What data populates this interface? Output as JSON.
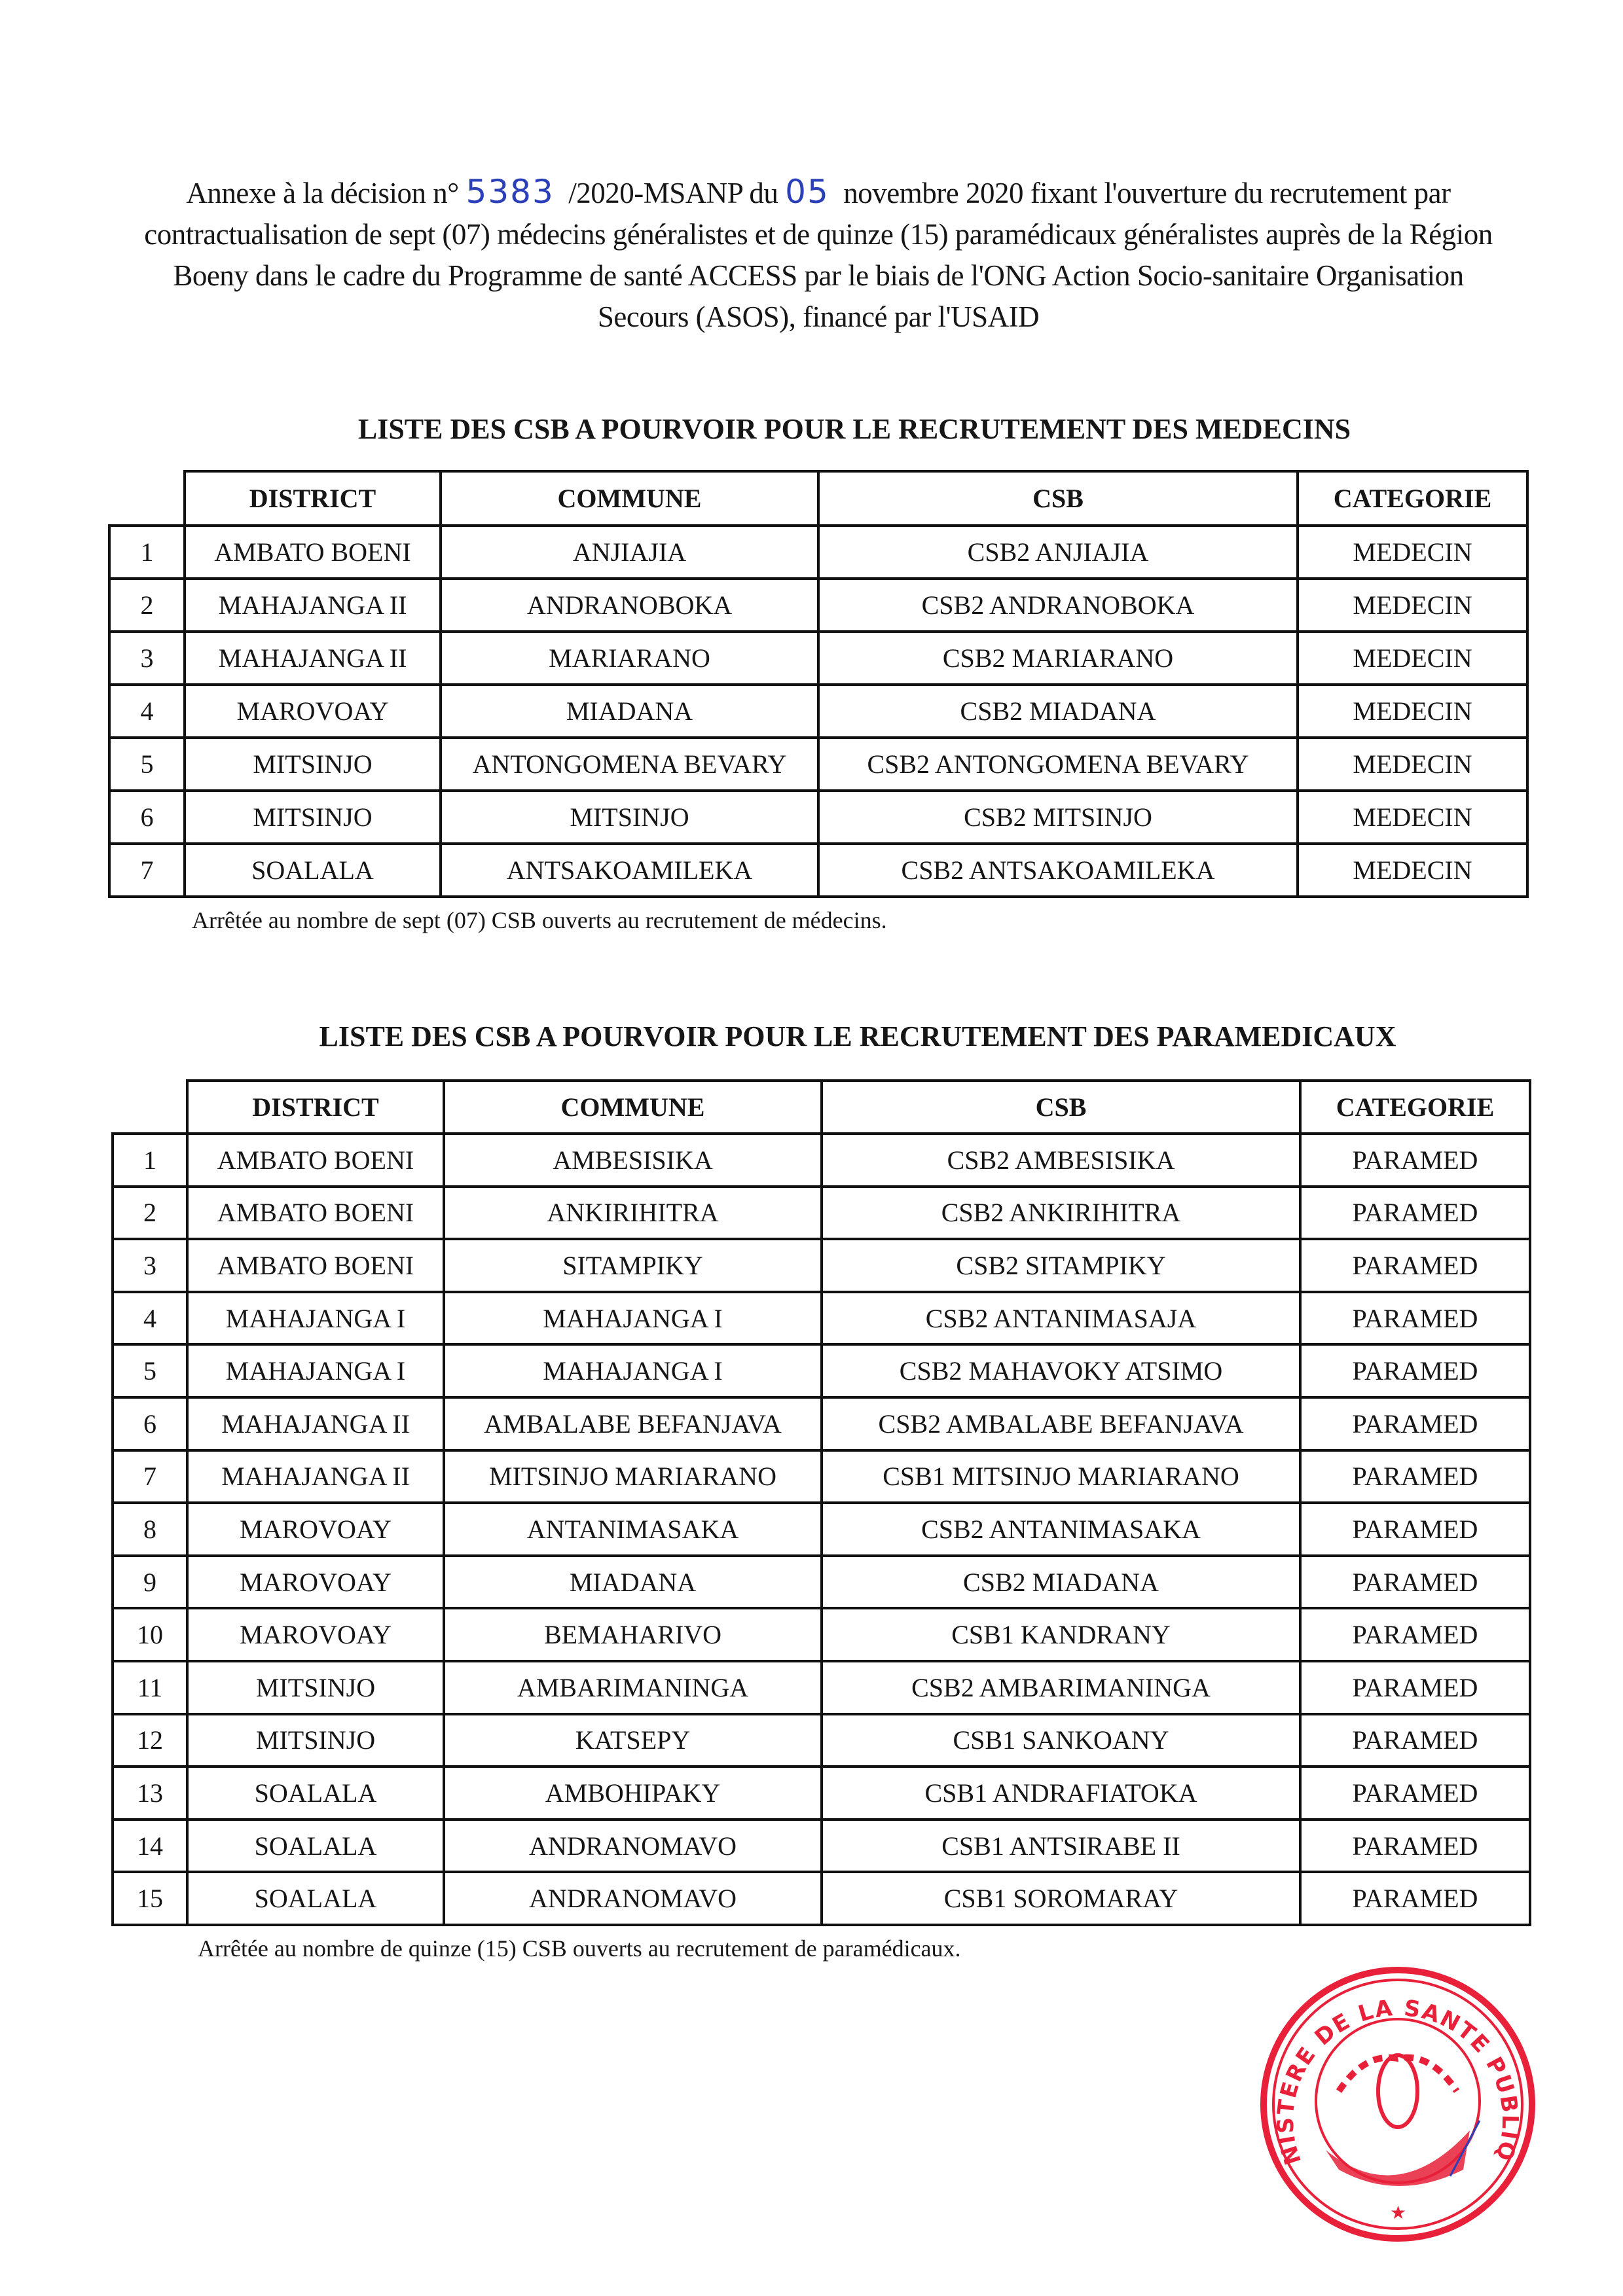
{
  "intro": {
    "part1": "Annexe à la décision n°",
    "decision_number": "5383",
    "part2": "/2020-MSANP du",
    "day": "05",
    "part3": "novembre 2020 fixant l'ouverture du recrutement par contractualisation de sept (07) médecins généralistes et de quinze (15) paramédicaux généralistes auprès de la  Région Boeny dans le cadre du Programme de santé ACCESS par le biais de l'ONG Action Socio-sanitaire Organisation Secours (ASOS), financé par l'USAID"
  },
  "headers": [
    "DISTRICT",
    "COMMUNE",
    "CSB",
    "CATEGORIE"
  ],
  "medecins": {
    "title": "LISTE DES CSB A POURVOIR POUR LE RECRUTEMENT DES MEDECINS",
    "rows": [
      [
        "1",
        "AMBATO BOENI",
        "ANJIAJIA",
        "CSB2 ANJIAJIA",
        "MEDECIN"
      ],
      [
        "2",
        "MAHAJANGA II",
        "ANDRANOBOKA",
        "CSB2 ANDRANOBOKA",
        "MEDECIN"
      ],
      [
        "3",
        "MAHAJANGA II",
        "MARIARANO",
        "CSB2 MARIARANO",
        "MEDECIN"
      ],
      [
        "4",
        "MAROVOAY",
        "MIADANA",
        "CSB2 MIADANA",
        "MEDECIN"
      ],
      [
        "5",
        "MITSINJO",
        "ANTONGOMENA BEVARY",
        "CSB2 ANTONGOMENA BEVARY",
        "MEDECIN"
      ],
      [
        "6",
        "MITSINJO",
        "MITSINJO",
        "CSB2 MITSINJO",
        "MEDECIN"
      ],
      [
        "7",
        "SOALALA",
        "ANTSAKOAMILEKA",
        "CSB2 ANTSAKOAMILEKA",
        "MEDECIN"
      ]
    ],
    "note": "Arrêtée au nombre de sept (07) CSB ouverts au recrutement de médecins."
  },
  "paramedicaux": {
    "title": "LISTE DES CSB A POURVOIR POUR LE RECRUTEMENT DES PARAMEDICAUX",
    "rows": [
      [
        "1",
        "AMBATO BOENI",
        "AMBESISIKA",
        "CSB2 AMBESISIKA",
        "PARAMED"
      ],
      [
        "2",
        "AMBATO BOENI",
        "ANKIRIHITRA",
        "CSB2 ANKIRIHITRA",
        "PARAMED"
      ],
      [
        "3",
        "AMBATO BOENI",
        "SITAMPIKY",
        "CSB2 SITAMPIKY",
        "PARAMED"
      ],
      [
        "4",
        "MAHAJANGA I",
        "MAHAJANGA I",
        "CSB2 ANTANIMASAJA",
        "PARAMED"
      ],
      [
        "5",
        "MAHAJANGA I",
        "MAHAJANGA I",
        "CSB2 MAHAVOKY ATSIMO",
        "PARAMED"
      ],
      [
        "6",
        "MAHAJANGA II",
        "AMBALABE BEFANJAVA",
        "CSB2 AMBALABE BEFANJAVA",
        "PARAMED"
      ],
      [
        "7",
        "MAHAJANGA II",
        "MITSINJO MARIARANO",
        "CSB1 MITSINJO MARIARANO",
        "PARAMED"
      ],
      [
        "8",
        "MAROVOAY",
        "ANTANIMASAKA",
        "CSB2 ANTANIMASAKA",
        "PARAMED"
      ],
      [
        "9",
        "MAROVOAY",
        "MIADANA",
        "CSB2 MIADANA",
        "PARAMED"
      ],
      [
        "10",
        "MAROVOAY",
        "BEMAHARIVO",
        "CSB1 KANDRANY",
        "PARAMED"
      ],
      [
        "11",
        "MITSINJO",
        "AMBARIMANINGA",
        "CSB2 AMBARIMANINGA",
        "PARAMED"
      ],
      [
        "12",
        "MITSINJO",
        "KATSEPY",
        "CSB1 SANKOANY",
        "PARAMED"
      ],
      [
        "13",
        "SOALALA",
        "AMBOHIPAKY",
        "CSB1 ANDRAFIATOKA",
        "PARAMED"
      ],
      [
        "14",
        "SOALALA",
        "ANDRANOMAVO",
        "CSB1 ANTSIRABE II",
        "PARAMED"
      ],
      [
        "15",
        "SOALALA",
        "ANDRANOMAVO",
        "CSB1 SOROMARAY",
        "PARAMED"
      ]
    ],
    "note": "Arrêtée au nombre de quinze (15) CSB ouverts au recrutement de paramédicaux."
  },
  "stamp": {
    "text": "MINISTERE DE LA SANTE PUBLIQUE",
    "color": "#e8203a"
  }
}
